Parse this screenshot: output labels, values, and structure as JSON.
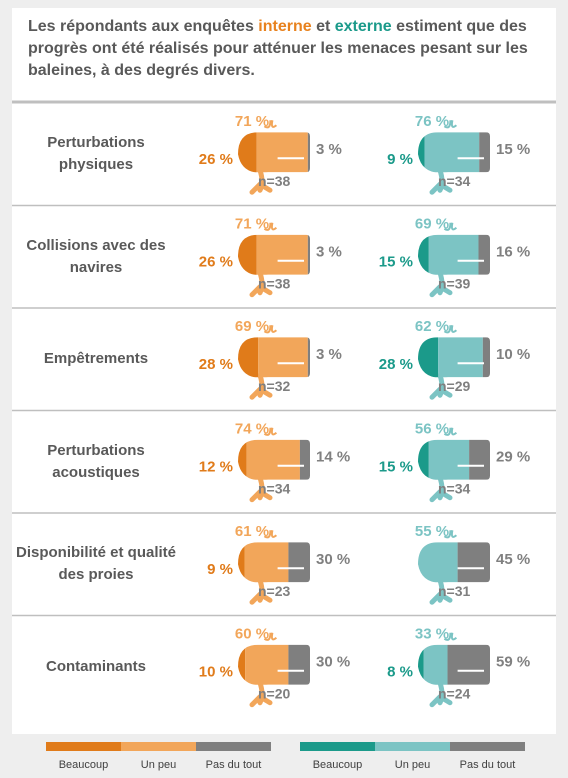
{
  "chart_data": {
    "type": "pictogram",
    "title_parts": [
      "Les répondants aux enquêtes ",
      "interne",
      " et ",
      "externe",
      " estiment que des progrès ont été réalisés pour atténuer les menaces pesant sur les baleines, à des degrés divers."
    ],
    "categories": [
      "Perturbations physiques",
      "Collisions avec des navires",
      "Empêtrements",
      "Perturbations acoustiques",
      "Disponibilité et qualité des proies",
      "Contaminants"
    ],
    "groups": [
      {
        "series": [
          {
            "name": "Beaucoup",
            "color": "#e07b1a",
            "values": [
              26,
              26,
              28,
              12,
              9,
              10
            ],
            "value_labels": [
              "26 %",
              "26 %",
              "28 %",
              "12 %",
              "9 %",
              "10 %"
            ]
          },
          {
            "name": "Un peu",
            "color": "#f2a65a",
            "values": [
              71,
              71,
              69,
              74,
              61,
              60
            ],
            "value_labels": [
              "71 %",
              "71 %",
              "69 %",
              "74 %",
              "61 %",
              "60 %"
            ]
          },
          {
            "name": "Pas du tout",
            "color": "#7f7f7f",
            "values": [
              3,
              3,
              3,
              14,
              30,
              30
            ],
            "value_labels": [
              "3 %",
              "3 %",
              "3 %",
              "14 %",
              "30 %",
              "30 %"
            ]
          }
        ],
        "n_labels": [
          "n=38",
          "n=38",
          "n=32",
          "n=34",
          "n=23",
          "n=20"
        ]
      },
      {
        "series": [
          {
            "name": "Beaucoup",
            "color": "#1b9a8a",
            "values": [
              9,
              15,
              28,
              15,
              null,
              8
            ],
            "value_labels": [
              "9 %",
              "15 %",
              "28 %",
              "15 %",
              null,
              "8 %"
            ]
          },
          {
            "name": "Un peu",
            "color": "#7cc4c4",
            "values": [
              76,
              69,
              62,
              56,
              55,
              33
            ],
            "value_labels": [
              "76 %",
              "69 %",
              "62 %",
              "56 %",
              "55 %",
              "33 %"
            ]
          },
          {
            "name": "Pas du tout",
            "color": "#7f7f7f",
            "values": [
              15,
              16,
              10,
              29,
              45,
              59
            ],
            "value_labels": [
              "15 %",
              "16 %",
              "10 %",
              "29 %",
              "45 %",
              "59 %"
            ]
          }
        ],
        "n_labels": [
          "n=34",
          "n=39",
          "n=29",
          "n=34",
          "n=31",
          "n=24"
        ]
      }
    ]
  }
}
